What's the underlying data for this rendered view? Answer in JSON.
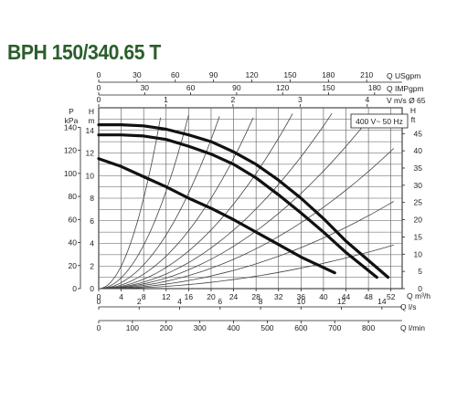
{
  "chart_data": {
    "type": "line",
    "title": "BPH 150/340.65 T",
    "x": {
      "label": "Q m³/h",
      "range": [
        0,
        54
      ],
      "ticks": [
        0,
        4,
        8,
        12,
        16,
        20,
        24,
        28,
        32,
        36,
        40,
        44,
        48,
        52
      ]
    },
    "y_head": {
      "label": "H m",
      "range": [
        0,
        16
      ],
      "ticks": [
        0,
        2,
        4,
        6,
        8,
        10,
        12,
        14
      ]
    },
    "y_pressure": {
      "label": "P kPa",
      "unit": "kPa",
      "ticks": [
        0,
        20,
        40,
        60,
        80,
        100,
        120,
        140
      ]
    },
    "y_head_ft": {
      "label": "H ft",
      "unit": "ft",
      "range": [
        0,
        52.5
      ],
      "ticks": [
        0,
        5,
        10,
        15,
        20,
        25,
        30,
        35,
        40,
        45
      ]
    },
    "top_axes": [
      {
        "label": "Q USgpm",
        "max": 237.8,
        "ticks": [
          0,
          30,
          60,
          90,
          120,
          150,
          180,
          210
        ]
      },
      {
        "label": "Q IMPgpm",
        "max": 198,
        "ticks": [
          0,
          30,
          60,
          90,
          120,
          150,
          180
        ]
      },
      {
        "label": "V m/s Ø 65",
        "max": 4.52,
        "ticks": [
          0,
          1,
          2,
          3,
          4
        ]
      }
    ],
    "bottom_axes": [
      {
        "label": "Q l/s",
        "max": 15,
        "ticks": [
          0,
          2,
          4,
          6,
          8,
          10,
          12,
          14
        ]
      },
      {
        "label": "Q l/min",
        "max": 900,
        "ticks": [
          0,
          100,
          200,
          300,
          400,
          500,
          600,
          700,
          800
        ]
      }
    ],
    "legend_box": "400 V~ 50 Hz",
    "series": [
      {
        "x": [
          0,
          4,
          8,
          12,
          16,
          20,
          24,
          28,
          32,
          36,
          40,
          44,
          48,
          51.5
        ],
        "y": [
          14.5,
          14.5,
          14.4,
          14.1,
          13.6,
          13.0,
          12.1,
          11.0,
          9.6,
          8.0,
          6.2,
          4.2,
          2.5,
          1.0
        ]
      },
      {
        "x": [
          0,
          4,
          8,
          12,
          16,
          20,
          24,
          28,
          32,
          36,
          40,
          44,
          49.5
        ],
        "y": [
          13.6,
          13.6,
          13.5,
          13.2,
          12.6,
          11.9,
          11.0,
          9.8,
          8.3,
          6.7,
          5.0,
          3.2,
          1.0
        ]
      },
      {
        "x": [
          0,
          4,
          8,
          12,
          16,
          20,
          24,
          28,
          32,
          36,
          42
        ],
        "y": [
          11.5,
          10.8,
          9.9,
          9.0,
          8.0,
          7.1,
          6.1,
          5.0,
          3.9,
          2.8,
          1.4
        ]
      }
    ],
    "system_curves": [
      {
        "k": 0.125,
        "x_end": 11
      },
      {
        "k": 0.06,
        "x_end": 16
      },
      {
        "k": 0.033,
        "x_end": 21.5
      },
      {
        "k": 0.02,
        "x_end": 27.5
      },
      {
        "k": 0.013,
        "x_end": 34.5
      },
      {
        "k": 0.009,
        "x_end": 41.5
      },
      {
        "k": 0.0065,
        "x_end": 48.5
      },
      {
        "k": 0.0045,
        "x_end": 52.5
      },
      {
        "k": 0.0028,
        "x_end": 52.5
      },
      {
        "k": 0.0014,
        "x_end": 52.5
      }
    ]
  }
}
